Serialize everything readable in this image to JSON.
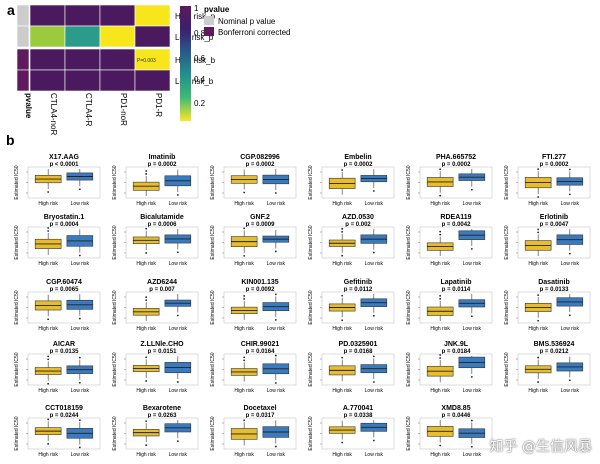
{
  "panel_a": {
    "label": "a",
    "row_labels": [
      "High risk_p",
      "Low risk_p",
      "High risk_b",
      "Low risk_b"
    ],
    "col_labels": [
      "CTLA4-noR",
      "CTLA4-R",
      "PD1-noR",
      "PD1-R"
    ],
    "side_label": "pvalue",
    "annotation": "P=0.003",
    "legend": {
      "title": "pvalue",
      "items": [
        "Nominal p value",
        "Bonferroni corrected"
      ],
      "item_colors": [
        "#cccccc",
        "#5e1a5c"
      ],
      "ticks": [
        "1",
        "0.8",
        "0.6",
        "0.4",
        "0.2"
      ],
      "scale_colors": [
        "#fde725",
        "#3fbc73",
        "#21918c",
        "#2a5a8a",
        "#3b1f6d",
        "#5e1a5c"
      ]
    },
    "cell_colors": [
      [
        "#4b1a5e",
        "#4b1a5e",
        "#4b1a5e",
        "#f7e61c"
      ],
      [
        "#9acb3c",
        "#2b9c8c",
        "#f7e61c",
        "#4b1a5e"
      ],
      [
        "#4b1a5e",
        "#4b1a5e",
        "#4b1a5e",
        "#f7e61c"
      ],
      [
        "#4b1a5e",
        "#4b1a5e",
        "#4b1a5e",
        "#4b1a5e"
      ]
    ],
    "side_colors": [
      "#cccccc",
      "#cccccc",
      "#5e1a5c",
      "#5e1a5c"
    ]
  },
  "panel_b": {
    "label": "b",
    "ylabel": "Estimated IC50",
    "group_labels": [
      "High risk",
      "Low risk"
    ],
    "colors": {
      "high": "#e7bd2e",
      "low": "#3a7bbf"
    },
    "drugs": [
      {
        "name": "X17.AAG",
        "p": "p < 0.0001"
      },
      {
        "name": "Imatinib",
        "p": "p = 0.0002"
      },
      {
        "name": "CGP.082996",
        "p": "p = 0.0002"
      },
      {
        "name": "Embelin",
        "p": "p = 0.0002"
      },
      {
        "name": "PHA.665752",
        "p": "p = 0.0002"
      },
      {
        "name": "FTI.277",
        "p": "p = 0.0002"
      },
      {
        "name": "Bryostatin.1",
        "p": "p = 0.0004"
      },
      {
        "name": "Bicalutamide",
        "p": "p = 0.0006"
      },
      {
        "name": "GNF.2",
        "p": "p = 0.0009"
      },
      {
        "name": "AZD.0530",
        "p": "p = 0.002"
      },
      {
        "name": "RDEA119",
        "p": "p = 0.0042"
      },
      {
        "name": "Erlotinib",
        "p": "p = 0.0047"
      },
      {
        "name": "CGP.60474",
        "p": "p = 0.0065"
      },
      {
        "name": "AZD6244",
        "p": "p = 0.007"
      },
      {
        "name": "KIN001.135",
        "p": "p = 0.0092"
      },
      {
        "name": "Gefitinib",
        "p": "p = 0.0112"
      },
      {
        "name": "Lapatinib",
        "p": "p = 0.0114"
      },
      {
        "name": "Dasatinib",
        "p": "p = 0.0133"
      },
      {
        "name": "AICAR",
        "p": "p = 0.0135"
      },
      {
        "name": "Z.LLNle.CHO",
        "p": "p = 0.0151"
      },
      {
        "name": "CHIR.99021",
        "p": "p = 0.0164"
      },
      {
        "name": "PD.0325901",
        "p": "p = 0.0168"
      },
      {
        "name": "JNK.9L",
        "p": "p = 0.0184"
      },
      {
        "name": "BMS.536924",
        "p": "p = 0.0212"
      },
      {
        "name": "CCT018159",
        "p": "p = 0.0244"
      },
      {
        "name": "Bexarotene",
        "p": "p = 0.0263"
      },
      {
        "name": "Docetaxel",
        "p": "p = 0.0317"
      },
      {
        "name": "A.770041",
        "p": "p = 0.0338"
      },
      {
        "name": "XMD8.85",
        "p": "p = 0.0446"
      }
    ]
  },
  "watermark": "知乎 @生信风暴"
}
